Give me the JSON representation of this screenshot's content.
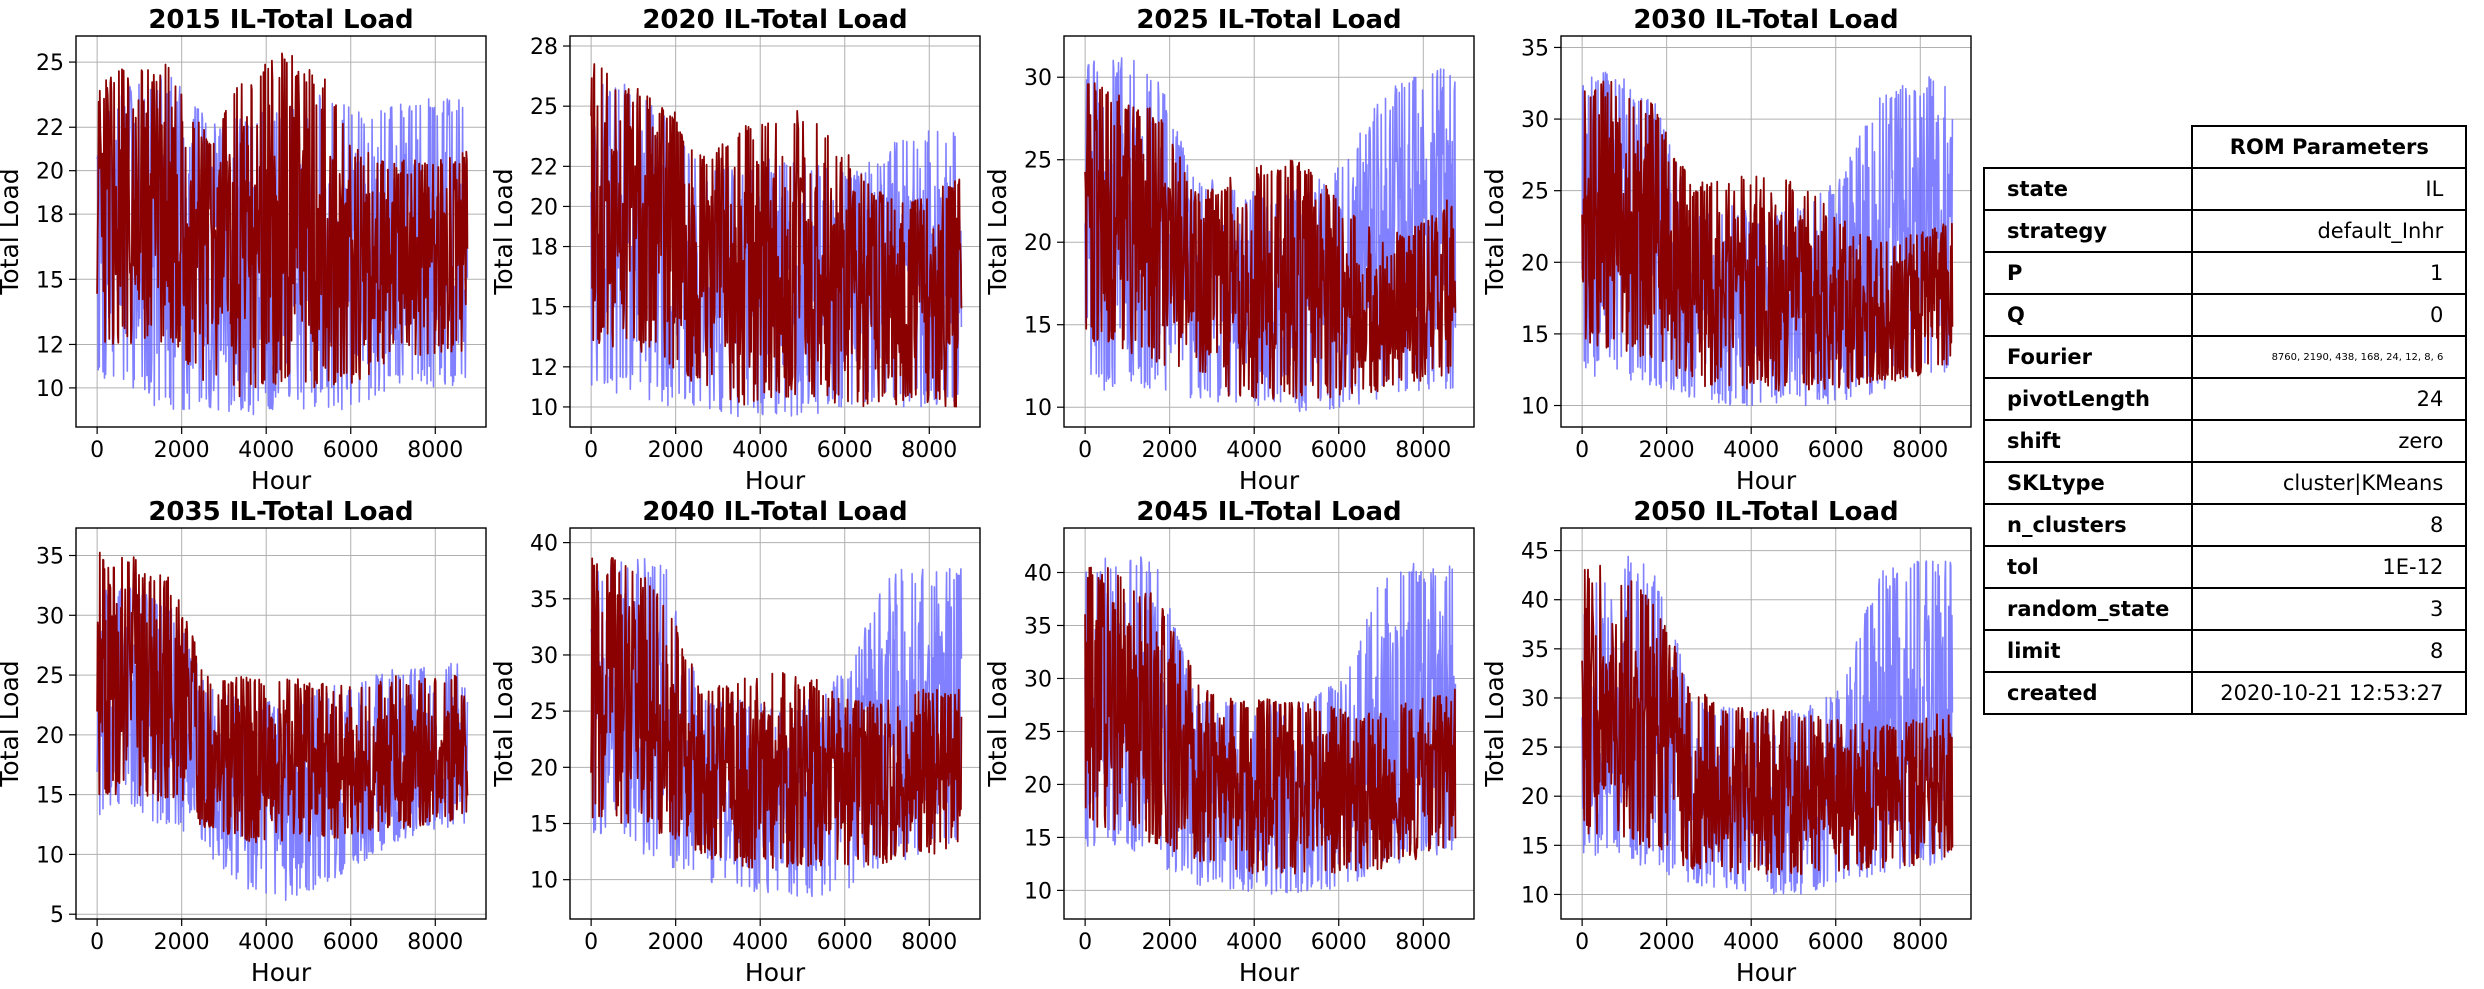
{
  "chart_data": [
    {
      "type": "line",
      "title": "2015 IL-Total Load",
      "xlabel": "Hour",
      "ylabel": "Total Load",
      "xlim": [
        -500,
        9200
      ],
      "ylim": [
        8.2,
        26.2
      ],
      "xticks": [
        0,
        2000,
        4000,
        6000,
        8000
      ],
      "yticks": [
        10,
        12,
        15,
        18,
        20,
        22,
        25
      ],
      "grid": true,
      "series": [
        {
          "color": "#6B6BFF",
          "band_low": [
            10,
            10,
            8.5,
            9,
            8.5,
            9,
            9,
            9,
            10,
            10,
            10
          ],
          "band_high": [
            23,
            24,
            24.5,
            22.5,
            22.5,
            23,
            23.5,
            23,
            23,
            23.5,
            23.5
          ]
        },
        {
          "color": "#8B0000",
          "band_low": [
            12,
            12,
            12,
            10,
            9.5,
            10,
            10,
            10,
            11.5,
            11.5,
            11.5
          ],
          "band_high": [
            24,
            25,
            25,
            21.5,
            24.5,
            25.5,
            25,
            21,
            20.5,
            20.5,
            21
          ]
        }
      ]
    },
    {
      "type": "line",
      "title": "2020 IL-Total Load",
      "xlabel": "Hour",
      "ylabel": "Total Load",
      "xlim": [
        -500,
        9200
      ],
      "ylim": [
        9,
        28.5
      ],
      "xticks": [
        0,
        2000,
        4000,
        6000,
        8000
      ],
      "yticks": [
        10,
        12,
        15,
        18,
        20,
        22,
        25,
        28
      ],
      "grid": true,
      "series": [
        {
          "color": "#6B6BFF",
          "band_low": [
            10.5,
            10.5,
            10,
            10,
            9.5,
            9.5,
            9.5,
            10,
            10,
            10,
            10
          ],
          "band_high": [
            26,
            26.5,
            25,
            22,
            22,
            22.5,
            22.5,
            21.5,
            23,
            24,
            24
          ]
        },
        {
          "color": "#8B0000",
          "band_low": [
            13,
            13,
            12,
            11,
            10,
            10.5,
            10.5,
            10,
            10,
            10,
            10
          ],
          "band_high": [
            27.5,
            26,
            25.5,
            22.5,
            24,
            24.5,
            25,
            22.5,
            20.5,
            20.5,
            21.5
          ]
        }
      ]
    },
    {
      "type": "line",
      "title": "2025 IL-Total Load",
      "xlabel": "Hour",
      "ylabel": "Total Load",
      "xlim": [
        -500,
        9200
      ],
      "ylim": [
        8.8,
        32.5
      ],
      "xticks": [
        0,
        2000,
        4000,
        6000,
        8000
      ],
      "yticks": [
        10,
        15,
        20,
        25,
        30
      ],
      "grid": true,
      "series": [
        {
          "color": "#6B6BFF",
          "band_low": [
            11,
            11,
            11,
            10.5,
            10,
            10,
            9.5,
            10,
            10.5,
            11,
            11
          ],
          "band_high": [
            31,
            31.5,
            30,
            24,
            23.5,
            23,
            23.5,
            25,
            29,
            30.5,
            30.5
          ]
        },
        {
          "color": "#8B0000",
          "band_low": [
            14,
            13.5,
            12.5,
            11.5,
            10.5,
            10.5,
            10.5,
            10.5,
            11,
            11.5,
            12
          ],
          "band_high": [
            30,
            29,
            28,
            23,
            24,
            25,
            25,
            22,
            20.5,
            21,
            23
          ]
        }
      ]
    },
    {
      "type": "line",
      "title": "2030 IL-Total Load",
      "xlabel": "Hour",
      "ylabel": "Total Load",
      "xlim": [
        -500,
        9200
      ],
      "ylim": [
        8.5,
        35.8
      ],
      "xticks": [
        0,
        2000,
        4000,
        6000,
        8000
      ],
      "yticks": [
        10,
        15,
        20,
        25,
        30,
        35
      ],
      "grid": true,
      "series": [
        {
          "color": "#6B6BFF",
          "band_low": [
            12,
            12,
            11,
            10.5,
            10,
            10,
            10,
            10,
            11,
            12,
            12
          ],
          "band_high": [
            33,
            33.5,
            31,
            24,
            24,
            23.5,
            24,
            26,
            32,
            33,
            33
          ]
        },
        {
          "color": "#8B0000",
          "band_low": [
            14,
            14,
            12.5,
            11.5,
            10.5,
            11,
            11,
            11,
            11.5,
            12,
            13
          ],
          "band_high": [
            33,
            32.5,
            31,
            25.5,
            26,
            26,
            25.5,
            23,
            21.5,
            22,
            23
          ]
        }
      ]
    },
    {
      "type": "line",
      "title": "2035 IL-Total Load",
      "xlabel": "Hour",
      "ylabel": "Total Load",
      "xlim": [
        -500,
        9200
      ],
      "ylim": [
        4.6,
        37.3
      ],
      "xticks": [
        0,
        2000,
        4000,
        6000,
        8000
      ],
      "yticks": [
        5,
        10,
        15,
        20,
        25,
        30,
        35
      ],
      "grid": true,
      "series": [
        {
          "color": "#6B6BFF",
          "band_low": [
            13,
            13,
            12,
            10,
            7,
            6,
            7,
            9,
            11,
            12,
            12
          ],
          "band_high": [
            32,
            33,
            31,
            24,
            23,
            23,
            24,
            24.5,
            25.5,
            26,
            26
          ]
        },
        {
          "color": "#8B0000",
          "band_low": [
            15,
            15,
            14,
            12,
            11,
            11,
            11,
            11.5,
            12,
            12.5,
            13
          ],
          "band_high": [
            35.5,
            35,
            33,
            25,
            25,
            25,
            24.5,
            24,
            25,
            25,
            25
          ]
        }
      ]
    },
    {
      "type": "line",
      "title": "2040 IL-Total Load",
      "xlabel": "Hour",
      "ylabel": "Total Load",
      "xlim": [
        -500,
        9200
      ],
      "ylim": [
        6.5,
        41.3
      ],
      "xticks": [
        0,
        2000,
        4000,
        6000,
        8000
      ],
      "yticks": [
        10,
        15,
        20,
        25,
        30,
        35,
        40
      ],
      "grid": true,
      "series": [
        {
          "color": "#6B6BFF",
          "band_low": [
            13,
            13,
            11,
            10,
            9,
            8.5,
            8.5,
            9,
            11,
            12,
            12
          ],
          "band_high": [
            37,
            39.5,
            38,
            26,
            26,
            26,
            26.5,
            29,
            38,
            38,
            38
          ]
        },
        {
          "color": "#8B0000",
          "band_low": [
            15,
            15,
            13.5,
            12,
            11,
            11,
            11,
            11,
            11.5,
            12,
            13
          ],
          "band_high": [
            39,
            38.5,
            35,
            27,
            28,
            28.5,
            28,
            26,
            26,
            27,
            27
          ]
        }
      ]
    },
    {
      "type": "line",
      "title": "2045 IL-Total Load",
      "xlabel": "Hour",
      "ylabel": "Total Load",
      "xlim": [
        -500,
        9200
      ],
      "ylim": [
        7.3,
        44.2
      ],
      "xticks": [
        0,
        2000,
        4000,
        6000,
        8000
      ],
      "yticks": [
        10,
        15,
        20,
        25,
        30,
        35,
        40
      ],
      "grid": true,
      "series": [
        {
          "color": "#6B6BFF",
          "band_low": [
            14,
            14,
            12,
            10.5,
            10,
            9.5,
            9.5,
            10,
            12,
            13,
            13
          ],
          "band_high": [
            40,
            42.5,
            41,
            28,
            28,
            27.5,
            28,
            30,
            40,
            41,
            41
          ]
        },
        {
          "color": "#8B0000",
          "band_low": [
            16,
            15.5,
            14,
            12.5,
            11.5,
            11.5,
            11.5,
            11.5,
            12,
            13,
            14
          ],
          "band_high": [
            41.5,
            40,
            38,
            30,
            28,
            28.5,
            28,
            27,
            27,
            28,
            29
          ]
        }
      ]
    },
    {
      "type": "line",
      "title": "2050 IL-Total Load",
      "xlabel": "Hour",
      "ylabel": "Total Load",
      "xlim": [
        -500,
        9200
      ],
      "ylim": [
        7.5,
        47.3
      ],
      "xticks": [
        0,
        2000,
        4000,
        6000,
        8000
      ],
      "yticks": [
        10,
        15,
        20,
        25,
        30,
        35,
        40,
        45
      ],
      "grid": true,
      "series": [
        {
          "color": "#6B6BFF",
          "band_low": [
            14,
            14,
            12,
            11,
            10.5,
            10,
            10,
            10.5,
            12,
            13,
            13
          ],
          "band_high": [
            42,
            45,
            43,
            30,
            29,
            28.5,
            29,
            31,
            43,
            44,
            44
          ]
        },
        {
          "color": "#8B0000",
          "band_low": [
            16,
            16,
            14,
            12.5,
            12,
            12,
            12,
            12,
            12.5,
            13,
            14
          ],
          "band_high": [
            44,
            43,
            40,
            31,
            29,
            29,
            28.5,
            28,
            27,
            28,
            29
          ]
        }
      ]
    }
  ],
  "params_table": {
    "header": "ROM Parameters",
    "rows": [
      {
        "key": "state",
        "value": "IL"
      },
      {
        "key": "strategy",
        "value": "default_Inhr"
      },
      {
        "key": "P",
        "value": "1"
      },
      {
        "key": "Q",
        "value": "0"
      },
      {
        "key": "Fourier",
        "value": "8760, 2190, 438, 168, 24, 12, 8, 6"
      },
      {
        "key": "pivotLength",
        "value": "24"
      },
      {
        "key": "shift",
        "value": "zero"
      },
      {
        "key": "SKLtype",
        "value": "cluster|KMeans"
      },
      {
        "key": "n_clusters",
        "value": "8"
      },
      {
        "key": "tol",
        "value": "1E-12"
      },
      {
        "key": "random_state",
        "value": "3"
      },
      {
        "key": "limit",
        "value": "8"
      },
      {
        "key": "created",
        "value": "2020-10-21 12:53:27"
      }
    ]
  }
}
